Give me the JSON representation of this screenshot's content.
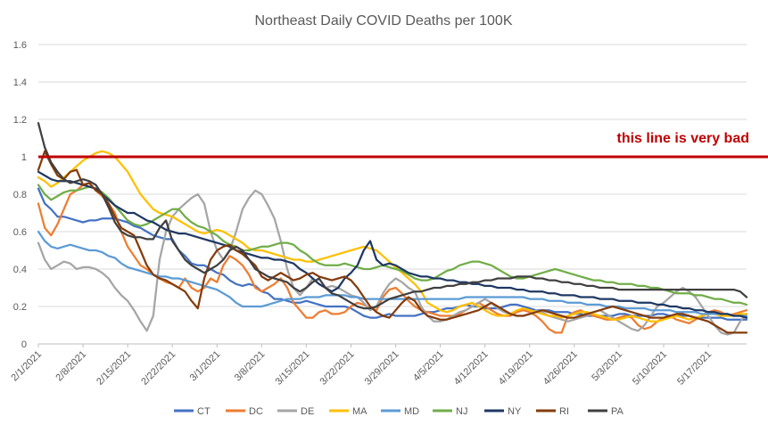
{
  "chart_data": {
    "type": "line",
    "title": "Northeast Daily COVID Deaths per 100K",
    "xlabel": "",
    "ylabel": "",
    "ylim": [
      0,
      1.6
    ],
    "yticks": [
      "0",
      "0.2",
      "0.4",
      "0.6",
      "0.8",
      "1",
      "1.2",
      "1.4",
      "1.6"
    ],
    "grid": true,
    "legend_position": "bottom",
    "x_start": "2/1/2021",
    "x_end": "5/23/2021",
    "xticks": [
      "2/1/2021",
      "2/8/2021",
      "2/15/2021",
      "2/22/2021",
      "3/1/2021",
      "3/8/2021",
      "3/15/2021",
      "3/22/2021",
      "3/29/2021",
      "4/5/2021",
      "4/12/2021",
      "4/19/2021",
      "4/26/2021",
      "5/3/2021",
      "5/10/2021",
      "5/17/2021"
    ],
    "reference_line": {
      "y": 1.0,
      "label": "this line is very bad",
      "color": "#c00000"
    },
    "series": [
      {
        "name": "CT",
        "color": "#4472c4",
        "values": [
          0.83,
          0.75,
          0.72,
          0.68,
          0.68,
          0.67,
          0.66,
          0.65,
          0.66,
          0.66,
          0.67,
          0.67,
          0.67,
          0.66,
          0.65,
          0.63,
          0.62,
          0.6,
          0.58,
          0.57,
          0.56,
          0.56,
          0.5,
          0.47,
          0.43,
          0.42,
          0.42,
          0.4,
          0.38,
          0.37,
          0.34,
          0.32,
          0.31,
          0.32,
          0.31,
          0.28,
          0.27,
          0.24,
          0.24,
          0.23,
          0.22,
          0.22,
          0.23,
          0.22,
          0.21,
          0.2,
          0.2,
          0.2,
          0.2,
          0.19,
          0.17,
          0.15,
          0.14,
          0.14,
          0.15,
          0.16,
          0.15,
          0.15,
          0.15,
          0.15,
          0.16,
          0.17,
          0.17,
          0.18,
          0.19,
          0.19,
          0.2,
          0.21,
          0.2,
          0.2,
          0.19,
          0.19,
          0.19,
          0.2,
          0.21,
          0.21,
          0.2,
          0.19,
          0.18,
          0.18,
          0.18,
          0.17,
          0.17,
          0.17,
          0.16,
          0.16,
          0.15,
          0.15,
          0.15,
          0.15,
          0.15,
          0.16,
          0.16,
          0.15,
          0.15,
          0.15,
          0.15,
          0.16,
          0.16,
          0.15,
          0.15,
          0.15,
          0.15,
          0.14,
          0.14,
          0.14,
          0.14,
          0.14,
          0.13,
          0.13,
          0.13,
          0.13
        ]
      },
      {
        "name": "DC",
        "color": "#ed7d31",
        "values": [
          0.75,
          0.62,
          0.58,
          0.64,
          0.72,
          0.8,
          0.82,
          0.85,
          0.86,
          0.82,
          0.79,
          0.75,
          0.7,
          0.6,
          0.52,
          0.47,
          0.42,
          0.4,
          0.37,
          0.35,
          0.33,
          0.32,
          0.3,
          0.35,
          0.3,
          0.28,
          0.3,
          0.35,
          0.33,
          0.42,
          0.47,
          0.45,
          0.42,
          0.37,
          0.3,
          0.28,
          0.3,
          0.32,
          0.35,
          0.3,
          0.22,
          0.18,
          0.14,
          0.14,
          0.17,
          0.18,
          0.16,
          0.16,
          0.17,
          0.2,
          0.22,
          0.21,
          0.19,
          0.18,
          0.25,
          0.29,
          0.3,
          0.27,
          0.23,
          0.2,
          0.18,
          0.17,
          0.16,
          0.15,
          0.15,
          0.15,
          0.16,
          0.18,
          0.2,
          0.22,
          0.2,
          0.18,
          0.16,
          0.15,
          0.15,
          0.17,
          0.18,
          0.17,
          0.15,
          0.12,
          0.08,
          0.06,
          0.06,
          0.15,
          0.17,
          0.18,
          0.16,
          0.15,
          0.14,
          0.13,
          0.13,
          0.14,
          0.15,
          0.14,
          0.1,
          0.08,
          0.09,
          0.12,
          0.14,
          0.15,
          0.13,
          0.12,
          0.11,
          0.13,
          0.15,
          0.17,
          0.18,
          0.17,
          0.15,
          0.16,
          0.17,
          0.18
        ]
      },
      {
        "name": "DE",
        "color": "#a5a5a5",
        "values": [
          0.54,
          0.45,
          0.4,
          0.42,
          0.44,
          0.43,
          0.4,
          0.41,
          0.41,
          0.4,
          0.38,
          0.35,
          0.3,
          0.26,
          0.23,
          0.18,
          0.12,
          0.07,
          0.15,
          0.45,
          0.6,
          0.68,
          0.72,
          0.75,
          0.78,
          0.8,
          0.75,
          0.6,
          0.5,
          0.45,
          0.5,
          0.6,
          0.72,
          0.78,
          0.82,
          0.8,
          0.74,
          0.67,
          0.55,
          0.4,
          0.3,
          0.26,
          0.3,
          0.35,
          0.32,
          0.3,
          0.31,
          0.3,
          0.28,
          0.26,
          0.25,
          0.22,
          0.18,
          0.2,
          0.27,
          0.32,
          0.35,
          0.33,
          0.3,
          0.28,
          0.2,
          0.15,
          0.12,
          0.12,
          0.13,
          0.15,
          0.17,
          0.18,
          0.2,
          0.22,
          0.24,
          0.22,
          0.19,
          0.17,
          0.16,
          0.15,
          0.15,
          0.16,
          0.18,
          0.17,
          0.15,
          0.14,
          0.13,
          0.12,
          0.13,
          0.14,
          0.15,
          0.17,
          0.18,
          0.16,
          0.14,
          0.12,
          0.1,
          0.08,
          0.07,
          0.1,
          0.15,
          0.2,
          0.22,
          0.25,
          0.28,
          0.3,
          0.28,
          0.25,
          0.2,
          0.15,
          0.1,
          0.06,
          0.05,
          0.06,
          0.12,
          0.16
        ]
      },
      {
        "name": "MA",
        "color": "#ffc000",
        "values": [
          0.89,
          0.87,
          0.84,
          0.86,
          0.89,
          0.92,
          0.95,
          0.98,
          1.0,
          1.02,
          1.03,
          1.02,
          1.0,
          0.96,
          0.92,
          0.86,
          0.8,
          0.76,
          0.72,
          0.7,
          0.69,
          0.68,
          0.66,
          0.64,
          0.62,
          0.6,
          0.59,
          0.6,
          0.61,
          0.6,
          0.58,
          0.56,
          0.54,
          0.51,
          0.5,
          0.5,
          0.49,
          0.48,
          0.47,
          0.46,
          0.45,
          0.45,
          0.44,
          0.44,
          0.45,
          0.46,
          0.47,
          0.48,
          0.49,
          0.5,
          0.51,
          0.52,
          0.51,
          0.5,
          0.47,
          0.44,
          0.41,
          0.38,
          0.35,
          0.32,
          0.28,
          0.22,
          0.2,
          0.18,
          0.17,
          0.18,
          0.2,
          0.21,
          0.22,
          0.2,
          0.18,
          0.16,
          0.15,
          0.15,
          0.16,
          0.18,
          0.19,
          0.18,
          0.17,
          0.16,
          0.15,
          0.15,
          0.14,
          0.15,
          0.16,
          0.17,
          0.17,
          0.16,
          0.15,
          0.14,
          0.13,
          0.13,
          0.14,
          0.15,
          0.14,
          0.13,
          0.12,
          0.12,
          0.13,
          0.14,
          0.15,
          0.14,
          0.13,
          0.14,
          0.15,
          0.16,
          0.16,
          0.15,
          0.15,
          0.15,
          0.16,
          0.16
        ]
      },
      {
        "name": "MD",
        "color": "#5b9bd5",
        "values": [
          0.6,
          0.55,
          0.52,
          0.51,
          0.52,
          0.53,
          0.52,
          0.51,
          0.5,
          0.5,
          0.49,
          0.47,
          0.46,
          0.43,
          0.41,
          0.4,
          0.39,
          0.38,
          0.37,
          0.36,
          0.36,
          0.35,
          0.35,
          0.34,
          0.33,
          0.32,
          0.31,
          0.3,
          0.29,
          0.27,
          0.25,
          0.22,
          0.2,
          0.2,
          0.2,
          0.2,
          0.21,
          0.22,
          0.23,
          0.24,
          0.24,
          0.24,
          0.25,
          0.25,
          0.25,
          0.26,
          0.26,
          0.26,
          0.26,
          0.25,
          0.25,
          0.24,
          0.24,
          0.24,
          0.24,
          0.24,
          0.24,
          0.24,
          0.24,
          0.24,
          0.24,
          0.24,
          0.24,
          0.24,
          0.24,
          0.24,
          0.24,
          0.25,
          0.25,
          0.25,
          0.25,
          0.25,
          0.25,
          0.25,
          0.25,
          0.25,
          0.25,
          0.24,
          0.24,
          0.24,
          0.23,
          0.23,
          0.23,
          0.22,
          0.22,
          0.22,
          0.21,
          0.21,
          0.21,
          0.2,
          0.2,
          0.2,
          0.19,
          0.19,
          0.19,
          0.19,
          0.18,
          0.18,
          0.18,
          0.18,
          0.17,
          0.17,
          0.17,
          0.17,
          0.16,
          0.16,
          0.16,
          0.16,
          0.16,
          0.15,
          0.15,
          0.15
        ]
      },
      {
        "name": "NJ",
        "color": "#70ad47",
        "values": [
          0.85,
          0.8,
          0.77,
          0.79,
          0.81,
          0.82,
          0.82,
          0.83,
          0.84,
          0.83,
          0.81,
          0.78,
          0.74,
          0.7,
          0.66,
          0.64,
          0.63,
          0.64,
          0.66,
          0.68,
          0.7,
          0.72,
          0.72,
          0.68,
          0.65,
          0.63,
          0.62,
          0.6,
          0.58,
          0.55,
          0.53,
          0.52,
          0.5,
          0.5,
          0.51,
          0.52,
          0.52,
          0.53,
          0.54,
          0.54,
          0.53,
          0.5,
          0.48,
          0.45,
          0.43,
          0.42,
          0.42,
          0.42,
          0.43,
          0.42,
          0.41,
          0.4,
          0.4,
          0.41,
          0.42,
          0.41,
          0.4,
          0.39,
          0.37,
          0.35,
          0.34,
          0.34,
          0.35,
          0.37,
          0.39,
          0.4,
          0.42,
          0.43,
          0.44,
          0.44,
          0.43,
          0.42,
          0.4,
          0.38,
          0.36,
          0.35,
          0.35,
          0.36,
          0.37,
          0.38,
          0.39,
          0.4,
          0.39,
          0.38,
          0.37,
          0.36,
          0.35,
          0.34,
          0.34,
          0.33,
          0.33,
          0.32,
          0.32,
          0.32,
          0.31,
          0.31,
          0.3,
          0.3,
          0.29,
          0.28,
          0.27,
          0.27,
          0.27,
          0.26,
          0.26,
          0.25,
          0.24,
          0.24,
          0.23,
          0.22,
          0.22,
          0.21
        ]
      },
      {
        "name": "NY",
        "color": "#1f3864",
        "values": [
          0.92,
          0.9,
          0.88,
          0.87,
          0.87,
          0.87,
          0.86,
          0.85,
          0.84,
          0.83,
          0.8,
          0.77,
          0.74,
          0.72,
          0.7,
          0.7,
          0.68,
          0.66,
          0.65,
          0.63,
          0.61,
          0.6,
          0.59,
          0.59,
          0.58,
          0.57,
          0.56,
          0.55,
          0.54,
          0.53,
          0.52,
          0.5,
          0.49,
          0.48,
          0.47,
          0.46,
          0.46,
          0.45,
          0.45,
          0.44,
          0.43,
          0.4,
          0.38,
          0.35,
          0.32,
          0.3,
          0.28,
          0.3,
          0.35,
          0.38,
          0.42,
          0.5,
          0.55,
          0.45,
          0.42,
          0.43,
          0.42,
          0.4,
          0.38,
          0.37,
          0.36,
          0.36,
          0.35,
          0.35,
          0.34,
          0.34,
          0.33,
          0.33,
          0.32,
          0.32,
          0.31,
          0.31,
          0.3,
          0.3,
          0.3,
          0.29,
          0.29,
          0.28,
          0.28,
          0.28,
          0.27,
          0.27,
          0.26,
          0.26,
          0.26,
          0.25,
          0.25,
          0.25,
          0.24,
          0.24,
          0.24,
          0.23,
          0.23,
          0.23,
          0.22,
          0.22,
          0.22,
          0.21,
          0.21,
          0.2,
          0.2,
          0.19,
          0.19,
          0.18,
          0.18,
          0.17,
          0.17,
          0.16,
          0.16,
          0.15,
          0.15,
          0.14
        ]
      },
      {
        "name": "RI",
        "color": "#843c0c",
        "values": [
          0.93,
          1.03,
          0.96,
          0.9,
          0.88,
          0.92,
          0.93,
          0.85,
          0.86,
          0.82,
          0.8,
          0.75,
          0.68,
          0.62,
          0.6,
          0.58,
          0.5,
          0.42,
          0.37,
          0.35,
          0.34,
          0.32,
          0.3,
          0.28,
          0.23,
          0.19,
          0.35,
          0.45,
          0.5,
          0.52,
          0.53,
          0.5,
          0.48,
          0.45,
          0.42,
          0.36,
          0.34,
          0.36,
          0.38,
          0.36,
          0.34,
          0.35,
          0.37,
          0.38,
          0.36,
          0.35,
          0.34,
          0.35,
          0.36,
          0.34,
          0.3,
          0.25,
          0.2,
          0.17,
          0.15,
          0.14,
          0.18,
          0.22,
          0.25,
          0.23,
          0.18,
          0.15,
          0.14,
          0.13,
          0.13,
          0.14,
          0.15,
          0.16,
          0.17,
          0.18,
          0.2,
          0.22,
          0.2,
          0.18,
          0.16,
          0.15,
          0.15,
          0.16,
          0.17,
          0.18,
          0.17,
          0.16,
          0.15,
          0.14,
          0.14,
          0.15,
          0.16,
          0.17,
          0.18,
          0.19,
          0.2,
          0.19,
          0.18,
          0.17,
          0.16,
          0.15,
          0.14,
          0.14,
          0.14,
          0.15,
          0.16,
          0.16,
          0.15,
          0.14,
          0.13,
          0.12,
          0.1,
          0.08,
          0.06,
          0.06,
          0.06,
          0.06
        ]
      },
      {
        "name": "PA",
        "color": "#404040",
        "values": [
          1.18,
          1.05,
          0.97,
          0.92,
          0.88,
          0.86,
          0.87,
          0.88,
          0.87,
          0.85,
          0.8,
          0.73,
          0.65,
          0.6,
          0.58,
          0.57,
          0.57,
          0.56,
          0.56,
          0.62,
          0.66,
          0.55,
          0.5,
          0.45,
          0.42,
          0.4,
          0.38,
          0.4,
          0.42,
          0.45,
          0.5,
          0.52,
          0.5,
          0.45,
          0.4,
          0.38,
          0.36,
          0.35,
          0.34,
          0.33,
          0.3,
          0.28,
          0.3,
          0.33,
          0.35,
          0.3,
          0.27,
          0.26,
          0.24,
          0.22,
          0.2,
          0.19,
          0.19,
          0.2,
          0.22,
          0.24,
          0.25,
          0.26,
          0.27,
          0.28,
          0.28,
          0.29,
          0.3,
          0.3,
          0.31,
          0.31,
          0.32,
          0.32,
          0.33,
          0.33,
          0.34,
          0.34,
          0.35,
          0.35,
          0.35,
          0.36,
          0.36,
          0.36,
          0.35,
          0.35,
          0.34,
          0.34,
          0.33,
          0.33,
          0.32,
          0.32,
          0.31,
          0.31,
          0.3,
          0.3,
          0.3,
          0.29,
          0.29,
          0.29,
          0.29,
          0.29,
          0.29,
          0.29,
          0.29,
          0.29,
          0.29,
          0.29,
          0.29,
          0.29,
          0.29,
          0.29,
          0.29,
          0.29,
          0.29,
          0.29,
          0.28,
          0.25
        ]
      }
    ]
  }
}
